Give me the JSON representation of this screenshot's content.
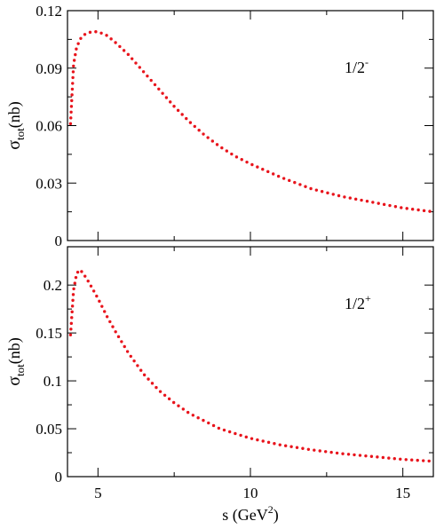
{
  "chart_data": [
    {
      "type": "scatter",
      "panel": "top",
      "annotation": {
        "base": "1/2",
        "sup": "-"
      },
      "ylabel": {
        "main": "σ",
        "sub": "tot",
        "tail": "(nb)"
      },
      "xlim": [
        4.0,
        16.0
      ],
      "ylim": [
        0,
        0.12
      ],
      "xticks": [
        5,
        10,
        15
      ],
      "yticks": [
        0,
        0.03,
        0.06,
        0.09,
        0.12
      ],
      "ytick_labels": [
        "0",
        "0.03",
        "0.06",
        "0.09",
        "0.12"
      ],
      "series": [
        {
          "color": "#e8141c",
          "x": [
            4.1,
            4.2,
            4.3,
            4.45,
            4.6,
            4.8,
            5.0,
            5.3,
            5.6,
            6.0,
            6.5,
            7.0,
            7.5,
            8.0,
            8.5,
            9.0,
            9.5,
            10.0,
            11.0,
            12.0,
            13.0,
            14.0,
            15.0,
            16.0
          ],
          "y": [
            0.061,
            0.092,
            0.101,
            0.106,
            0.108,
            0.109,
            0.109,
            0.107,
            0.103,
            0.097,
            0.088,
            0.079,
            0.07,
            0.062,
            0.055,
            0.049,
            0.044,
            0.04,
            0.033,
            0.027,
            0.023,
            0.02,
            0.017,
            0.015
          ]
        }
      ]
    },
    {
      "type": "scatter",
      "panel": "bottom",
      "annotation": {
        "base": "1/2",
        "sup": "+"
      },
      "ylabel": {
        "main": "σ",
        "sub": "tot",
        "tail": "(nb)"
      },
      "xlabel": {
        "main": "s (GeV",
        "sup": "2",
        "tail": ")"
      },
      "xlim": [
        4.0,
        16.0
      ],
      "ylim": [
        0,
        0.24
      ],
      "xticks": [
        5,
        10,
        15
      ],
      "xtick_labels": [
        "5",
        "10",
        "15"
      ],
      "yticks": [
        0,
        0.05,
        0.1,
        0.15,
        0.2
      ],
      "ytick_labels": [
        "0",
        "0.05",
        "0.1",
        "0.15",
        "0.2"
      ],
      "series": [
        {
          "color": "#e8141c",
          "x": [
            4.1,
            4.2,
            4.3,
            4.4,
            4.5,
            4.7,
            5.0,
            5.3,
            5.6,
            6.0,
            6.5,
            7.0,
            7.5,
            8.0,
            9.0,
            10.0,
            11.0,
            12.0,
            13.0,
            14.0,
            15.0,
            16.0
          ],
          "y": [
            0.148,
            0.195,
            0.212,
            0.216,
            0.213,
            0.203,
            0.186,
            0.167,
            0.15,
            0.129,
            0.107,
            0.09,
            0.077,
            0.066,
            0.05,
            0.04,
            0.033,
            0.028,
            0.024,
            0.021,
            0.018,
            0.016
          ]
        }
      ]
    }
  ]
}
